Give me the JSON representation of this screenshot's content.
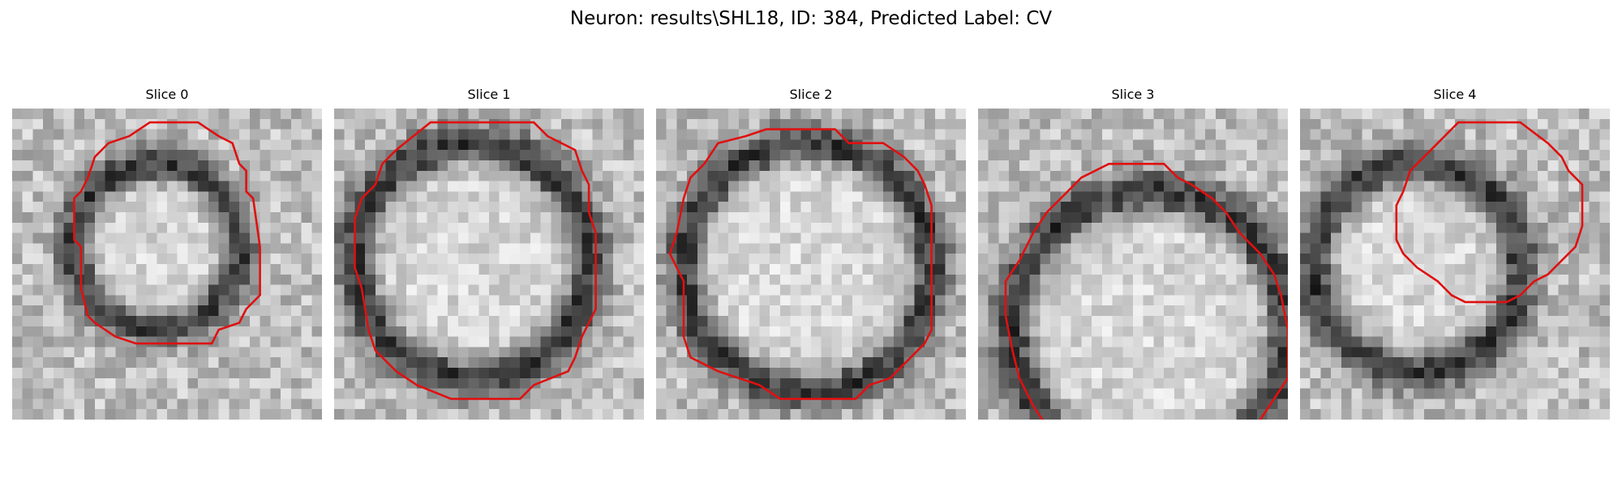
{
  "figure": {
    "suptitle": "Neuron: results\\SHL18, ID: 384, Predicted Label: CV"
  },
  "panels": [
    {
      "title": "Slice 0",
      "contour_color": "#e01010",
      "contour": [
        [
          20,
          2
        ],
        [
          27,
          2
        ],
        [
          30,
          4
        ],
        [
          32,
          5
        ],
        [
          33,
          8
        ],
        [
          34,
          9
        ],
        [
          34,
          12
        ],
        [
          35,
          13
        ],
        [
          36,
          20
        ],
        [
          36,
          27
        ],
        [
          34,
          29
        ],
        [
          33,
          31
        ],
        [
          30,
          32
        ],
        [
          29,
          34
        ],
        [
          18,
          34
        ],
        [
          15,
          33
        ],
        [
          12,
          31
        ],
        [
          11,
          30
        ],
        [
          10,
          26
        ],
        [
          10,
          20
        ],
        [
          9,
          19
        ],
        [
          9,
          13
        ],
        [
          10,
          12
        ],
        [
          11,
          10
        ],
        [
          12,
          7
        ],
        [
          14,
          5
        ],
        [
          17,
          4
        ]
      ],
      "ring": {
        "cx": 21,
        "cy": 20,
        "r": 12,
        "width": 3.2
      },
      "seed": 11
    },
    {
      "title": "Slice 1",
      "contour_color": "#e01010",
      "contour": [
        [
          14,
          2
        ],
        [
          29,
          2
        ],
        [
          31,
          4
        ],
        [
          35,
          6
        ],
        [
          36,
          9
        ],
        [
          37,
          11
        ],
        [
          37,
          15
        ],
        [
          38,
          18
        ],
        [
          38,
          29
        ],
        [
          36,
          33
        ],
        [
          35,
          36
        ],
        [
          34,
          38
        ],
        [
          29,
          40
        ],
        [
          27,
          42
        ],
        [
          17,
          42
        ],
        [
          12,
          40
        ],
        [
          9,
          38
        ],
        [
          6,
          35
        ],
        [
          5,
          32
        ],
        [
          4,
          26
        ],
        [
          3,
          23
        ],
        [
          3,
          16
        ],
        [
          4,
          13
        ],
        [
          6,
          11
        ],
        [
          7,
          8
        ],
        [
          9,
          6
        ]
      ],
      "ring": {
        "cx": 20,
        "cy": 22,
        "r": 17,
        "width": 3.6
      },
      "seed": 23
    },
    {
      "title": "Slice 2",
      "contour_color": "#e01010",
      "contour": [
        [
          16,
          3
        ],
        [
          26,
          3
        ],
        [
          28,
          5
        ],
        [
          33,
          5
        ],
        [
          36,
          7
        ],
        [
          38,
          9
        ],
        [
          39,
          11
        ],
        [
          40,
          14
        ],
        [
          40,
          25
        ],
        [
          40,
          32
        ],
        [
          39,
          34
        ],
        [
          37,
          36
        ],
        [
          36,
          37
        ],
        [
          34,
          39
        ],
        [
          31,
          40
        ],
        [
          29,
          42
        ],
        [
          18,
          42
        ],
        [
          15,
          40
        ],
        [
          9,
          38
        ],
        [
          5,
          36
        ],
        [
          4,
          33
        ],
        [
          4,
          25
        ],
        [
          3,
          23
        ],
        [
          2,
          21
        ],
        [
          3,
          18
        ],
        [
          4,
          13
        ],
        [
          5,
          10
        ],
        [
          7,
          8
        ],
        [
          9,
          5
        ],
        [
          13,
          4
        ]
      ],
      "ring": {
        "cx": 22,
        "cy": 23,
        "r": 18,
        "width": 3.4
      },
      "seed": 37
    },
    {
      "title": "Slice 3",
      "contour_color": "#e01010",
      "contour": [
        [
          19,
          8
        ],
        [
          27,
          8
        ],
        [
          29,
          10
        ],
        [
          31,
          11
        ],
        [
          34,
          13
        ],
        [
          36,
          15
        ],
        [
          38,
          18
        ],
        [
          41,
          21
        ],
        [
          43,
          24
        ],
        [
          44,
          27
        ],
        [
          45,
          32
        ],
        [
          45,
          39
        ],
        [
          43,
          42
        ],
        [
          41,
          45
        ],
        [
          38,
          48
        ],
        [
          36,
          51
        ],
        [
          33,
          53
        ],
        [
          29,
          55
        ],
        [
          24,
          55
        ],
        [
          21,
          54
        ],
        [
          18,
          53
        ],
        [
          15,
          51
        ],
        [
          13,
          49
        ],
        [
          10,
          46
        ],
        [
          8,
          43
        ],
        [
          6,
          39
        ],
        [
          5,
          35
        ],
        [
          4,
          30
        ],
        [
          4,
          25
        ],
        [
          6,
          22
        ],
        [
          8,
          18
        ],
        [
          10,
          15
        ],
        [
          13,
          12
        ],
        [
          15,
          10
        ]
      ],
      "ring": {
        "cx": 25,
        "cy": 32,
        "r": 20,
        "width": 3.8
      },
      "seed": 53
    },
    {
      "title": "Slice 4",
      "contour_color": "#e01010",
      "contour": [
        [
          23,
          2
        ],
        [
          32,
          2
        ],
        [
          36,
          5
        ],
        [
          38,
          7
        ],
        [
          39,
          9
        ],
        [
          41,
          11
        ],
        [
          41,
          17
        ],
        [
          40,
          20
        ],
        [
          38,
          22
        ],
        [
          36,
          24
        ],
        [
          34,
          25
        ],
        [
          32,
          27
        ],
        [
          30,
          28
        ],
        [
          24,
          28
        ],
        [
          22,
          27
        ],
        [
          20,
          25
        ],
        [
          17,
          23
        ],
        [
          15,
          21
        ],
        [
          14,
          19
        ],
        [
          14,
          14
        ],
        [
          15,
          12
        ],
        [
          16,
          9
        ],
        [
          18,
          7
        ],
        [
          20,
          5
        ]
      ],
      "ring": {
        "cx": 17,
        "cy": 23,
        "r": 15,
        "width": 3.6
      },
      "seed": 71
    }
  ]
}
